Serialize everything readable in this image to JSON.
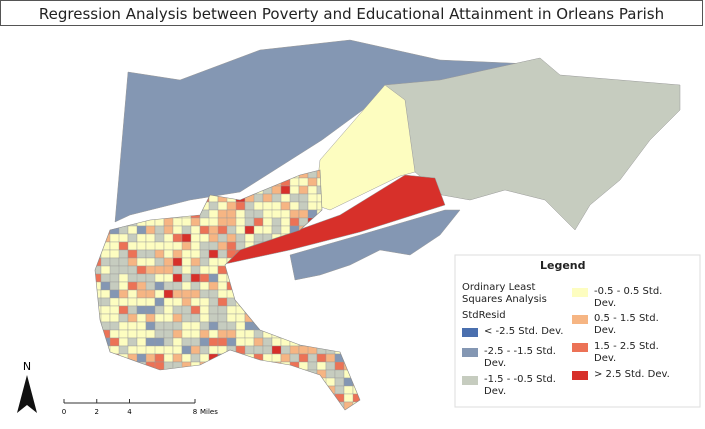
{
  "title": "Regression Analysis between Poverty and Educational Attainment in Orleans Parish",
  "legend": {
    "title": "Legend",
    "layer": "Ordinary Least Squares Analysis",
    "field": "StdResid",
    "items": [
      {
        "label": "< -2.5 Std. Dev.",
        "color": "#4a6fae"
      },
      {
        "label": "-2.5 - -1.5 Std. Dev.",
        "color": "#8497b3"
      },
      {
        "label": "-1.5 - -0.5 Std. Dev.",
        "color": "#c6ccbf"
      },
      {
        "label": "-0.5 - 0.5 Std. Dev.",
        "color": "#fdfdc0"
      },
      {
        "label": "0.5 - 1.5 Std. Dev.",
        "color": "#f6b583"
      },
      {
        "label": "1.5 - 2.5 Std. Dev.",
        "color": "#ec7256"
      },
      {
        "label": "> 2.5 Std. Dev.",
        "color": "#d7302a"
      }
    ]
  },
  "north_arrow": "N",
  "scale_bar": {
    "ticks": [
      0,
      2,
      4,
      8
    ],
    "unit": "Miles"
  }
}
